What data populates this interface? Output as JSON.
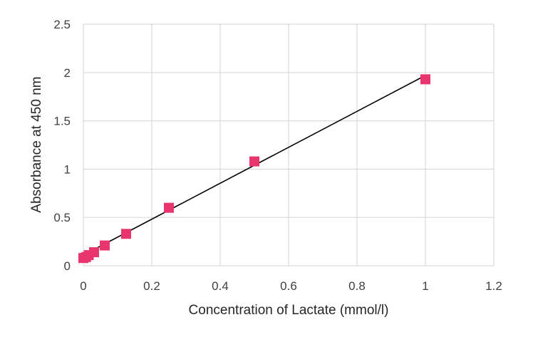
{
  "chart_data": {
    "type": "scatter",
    "xlabel": "Concentration of Lactate (mmol/l)",
    "ylabel": "Absorbance at 450 nm",
    "xlim": [
      0,
      1.2
    ],
    "ylim": [
      0,
      2.5
    ],
    "x_ticks": [
      0,
      0.2,
      0.4,
      0.6,
      0.8,
      1,
      1.2
    ],
    "y_ticks": [
      0,
      0.5,
      1,
      1.5,
      2,
      2.5
    ],
    "x_tick_labels": [
      "0",
      "0.2",
      "0.4",
      "0.6",
      "0.8",
      "1",
      "1.2"
    ],
    "y_tick_labels": [
      "0",
      "0.5",
      "1",
      "1.5",
      "2",
      "2.5"
    ],
    "grid": true,
    "legend": "none",
    "series": [
      {
        "x": [
          0,
          0.0078,
          0.0156,
          0.03125,
          0.0625,
          0.125,
          0.25,
          0.5,
          1
        ],
        "y": [
          0.08,
          0.09,
          0.11,
          0.14,
          0.21,
          0.33,
          0.6,
          1.08,
          1.93
        ],
        "marker": "square",
        "color": "#e8356d"
      }
    ],
    "trendline": {
      "type": "linear",
      "x_range": [
        0,
        1
      ],
      "y_range": [
        0.11,
        1.97
      ],
      "color": "#000000"
    }
  }
}
